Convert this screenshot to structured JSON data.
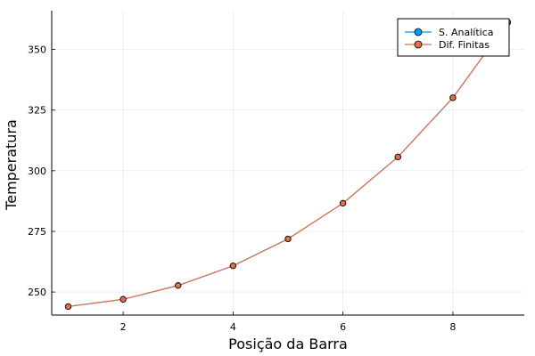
{
  "chart_data": {
    "type": "line",
    "title": "",
    "xlabel": "Posição da Barra",
    "ylabel": "Temperatura",
    "xlim": [
      0.7,
      9.3
    ],
    "ylim": [
      240.5,
      366
    ],
    "x_ticks": [
      2,
      4,
      6,
      8
    ],
    "y_ticks": [
      250,
      275,
      300,
      325,
      350
    ],
    "grid": true,
    "legend_position": "top-right",
    "x": [
      1,
      2,
      3,
      4,
      5,
      6,
      7,
      8,
      9
    ],
    "series": [
      {
        "name": "S. Analítica",
        "color": "#009AFA",
        "marker": "circle",
        "values": [
          244.0,
          247.0,
          252.7,
          260.8,
          271.9,
          286.6,
          305.7,
          330.1,
          361.2
        ]
      },
      {
        "name": "Dif. Finitas",
        "color": "#E26F46",
        "marker": "circle",
        "values": [
          244.0,
          247.0,
          252.7,
          260.8,
          271.9,
          286.6,
          305.7,
          330.1,
          361.2
        ]
      }
    ]
  }
}
